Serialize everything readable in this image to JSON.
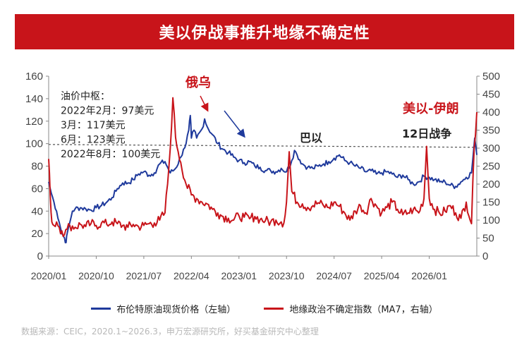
{
  "banner": {
    "title": "美以伊战事推升地缘不确定性"
  },
  "chart_data": {
    "type": "line",
    "title": "美以伊战事推升地缘不确定性",
    "x_ticks": [
      "2020/01",
      "2020/10",
      "2021/07",
      "2022/04",
      "2023/01",
      "2023/10",
      "2024/07",
      "2025/04",
      "2026/01"
    ],
    "y_left": {
      "ticks": [
        0,
        20,
        40,
        60,
        80,
        100,
        120,
        140,
        160
      ],
      "range": [
        0,
        160
      ]
    },
    "y_right": {
      "ticks": [
        0,
        50,
        100,
        150,
        200,
        250,
        300,
        350,
        400,
        450,
        500
      ],
      "range": [
        0,
        500
      ]
    },
    "reference_line": {
      "value": 98,
      "axis": "left",
      "style": "dashed"
    },
    "series": [
      {
        "name": "布伦特原油现货价格（左轴）",
        "axis": "left",
        "color": "#1f3a9c",
        "points": [
          [
            0,
            66
          ],
          [
            0.5,
            56
          ],
          [
            1,
            48
          ],
          [
            1.5,
            40
          ],
          [
            2,
            30
          ],
          [
            2.5,
            20
          ],
          [
            3,
            16
          ],
          [
            3.3,
            12
          ],
          [
            3.5,
            20
          ],
          [
            4,
            30
          ],
          [
            4.5,
            40
          ],
          [
            5,
            42
          ],
          [
            6,
            43
          ],
          [
            7,
            42
          ],
          [
            8,
            41
          ],
          [
            9,
            43
          ],
          [
            10,
            45
          ],
          [
            11,
            48
          ],
          [
            12,
            52
          ],
          [
            13,
            60
          ],
          [
            14,
            65
          ],
          [
            15,
            65
          ],
          [
            16,
            68
          ],
          [
            17,
            73
          ],
          [
            18,
            75
          ],
          [
            19,
            72
          ],
          [
            20,
            74
          ],
          [
            21,
            82
          ],
          [
            22,
            84
          ],
          [
            23,
            74
          ],
          [
            24,
            78
          ],
          [
            25,
            88
          ],
          [
            25.5,
            95
          ],
          [
            26,
            100
          ],
          [
            26.5,
            112
          ],
          [
            26.8,
            125
          ],
          [
            27,
            105
          ],
          [
            27.5,
            112
          ],
          [
            28,
            105
          ],
          [
            29,
            113
          ],
          [
            29.5,
            122
          ],
          [
            30,
            115
          ],
          [
            31,
            108
          ],
          [
            32,
            100
          ],
          [
            33,
            95
          ],
          [
            34,
            92
          ],
          [
            35,
            88
          ],
          [
            36,
            85
          ],
          [
            37,
            83
          ],
          [
            38,
            84
          ],
          [
            39,
            80
          ],
          [
            40,
            79
          ],
          [
            41,
            76
          ],
          [
            42,
            76
          ],
          [
            43,
            75
          ],
          [
            44,
            78
          ],
          [
            45,
            75
          ],
          [
            46,
            85
          ],
          [
            46.5,
            94
          ],
          [
            47,
            90
          ],
          [
            48,
            82
          ],
          [
            49,
            79
          ],
          [
            50,
            78
          ],
          [
            51,
            80
          ],
          [
            52,
            82
          ],
          [
            53,
            84
          ],
          [
            54,
            87
          ],
          [
            55,
            90
          ],
          [
            56,
            85
          ],
          [
            57,
            83
          ],
          [
            58,
            80
          ],
          [
            59,
            78
          ],
          [
            60,
            75
          ],
          [
            61,
            76
          ],
          [
            62,
            73
          ],
          [
            63,
            74
          ],
          [
            64,
            75
          ],
          [
            65,
            73
          ],
          [
            66,
            70
          ],
          [
            67,
            72
          ],
          [
            68,
            68
          ],
          [
            69,
            64
          ],
          [
            70,
            66
          ],
          [
            71,
            71
          ],
          [
            72,
            70
          ],
          [
            73,
            68
          ],
          [
            74,
            66
          ],
          [
            75,
            66
          ],
          [
            76,
            63
          ],
          [
            77,
            62
          ],
          [
            78,
            66
          ],
          [
            79,
            70
          ],
          [
            80,
            74
          ],
          [
            80.6,
            105
          ],
          [
            81,
            90
          ]
        ]
      },
      {
        "name": "地缘政治不确定指数（MA7，右轴）",
        "axis": "right",
        "color": "#c8141a",
        "points": [
          [
            0,
            270
          ],
          [
            0.3,
            170
          ],
          [
            0.6,
            95
          ],
          [
            1,
            85
          ],
          [
            1.5,
            95
          ],
          [
            2,
            80
          ],
          [
            2.5,
            70
          ],
          [
            3,
            60
          ],
          [
            3.5,
            75
          ],
          [
            4,
            85
          ],
          [
            5,
            80
          ],
          [
            6,
            88
          ],
          [
            7,
            82
          ],
          [
            8,
            90
          ],
          [
            9,
            85
          ],
          [
            10,
            92
          ],
          [
            11,
            88
          ],
          [
            12,
            95
          ],
          [
            13,
            90
          ],
          [
            14,
            85
          ],
          [
            15,
            80
          ],
          [
            16,
            88
          ],
          [
            17,
            82
          ],
          [
            18,
            85
          ],
          [
            19,
            90
          ],
          [
            20,
            92
          ],
          [
            21,
            100
          ],
          [
            22,
            120
          ],
          [
            22.5,
            200
          ],
          [
            23,
            300
          ],
          [
            23.5,
            440
          ],
          [
            24,
            330
          ],
          [
            24.5,
            290
          ],
          [
            25,
            260
          ],
          [
            26,
            200
          ],
          [
            27,
            170
          ],
          [
            28,
            160
          ],
          [
            29,
            150
          ],
          [
            30,
            145
          ],
          [
            31,
            130
          ],
          [
            32,
            120
          ],
          [
            33,
            110
          ],
          [
            34,
            105
          ],
          [
            35,
            100
          ],
          [
            36,
            112
          ],
          [
            37,
            108
          ],
          [
            38,
            104
          ],
          [
            39,
            110
          ],
          [
            40,
            102
          ],
          [
            41,
            98
          ],
          [
            42,
            95
          ],
          [
            43,
            100
          ],
          [
            44,
            95
          ],
          [
            44.5,
            92
          ],
          [
            45,
            150
          ],
          [
            45.5,
            290
          ],
          [
            46,
            180
          ],
          [
            47,
            150
          ],
          [
            48,
            145
          ],
          [
            49,
            135
          ],
          [
            50,
            140
          ],
          [
            51,
            148
          ],
          [
            52,
            140
          ],
          [
            53,
            135
          ],
          [
            54,
            150
          ],
          [
            55,
            138
          ],
          [
            56,
            120
          ],
          [
            57,
            100
          ],
          [
            58,
            125
          ],
          [
            59,
            140
          ],
          [
            60,
            120
          ],
          [
            61,
            160
          ],
          [
            62,
            140
          ],
          [
            63,
            120
          ],
          [
            64,
            135
          ],
          [
            65,
            150
          ],
          [
            66,
            130
          ],
          [
            67,
            115
          ],
          [
            68,
            120
          ],
          [
            69,
            130
          ],
          [
            70,
            120
          ],
          [
            71,
            160
          ],
          [
            71.5,
            305
          ],
          [
            72,
            160
          ],
          [
            73,
            130
          ],
          [
            74,
            118
          ],
          [
            75,
            125
          ],
          [
            76,
            140
          ],
          [
            77,
            120
          ],
          [
            78,
            105
          ],
          [
            79,
            150
          ],
          [
            80,
            90
          ],
          [
            80.5,
            300
          ],
          [
            81,
            400
          ]
        ]
      }
    ],
    "annotations": [
      {
        "label": "oil_hub",
        "lines": [
          "油价中枢：",
          "2022年2月：97美元",
          "3月：117美元",
          "6月：123美元",
          "2022年8月：100美元"
        ]
      },
      {
        "label": "event_ru_ua",
        "text": "俄乌",
        "color": "#c8141a"
      },
      {
        "label": "event_ba_yi",
        "text": "巴以",
        "color": "#222222"
      },
      {
        "label": "event_12day",
        "text": "12日战争",
        "color": "#222222"
      },
      {
        "label": "event_us_isr_iran",
        "text": "美以-伊朗",
        "color": "#c8141a"
      }
    ]
  },
  "legend": {
    "brent": "布伦特原油现货价格（左轴）",
    "gpr": "地缘政治不确定指数（MA7，右轴）"
  },
  "source": "数据来源：CEIC，2020.1~2026.3，申万宏源研究所，好买基金研究中心整理"
}
